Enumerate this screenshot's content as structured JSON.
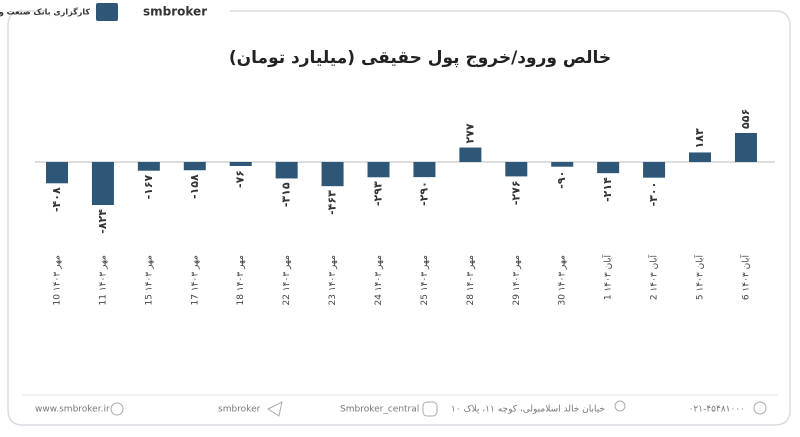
{
  "header": {
    "brand": "smbroker",
    "logo_text": "کارگزاری بانک صنعت و معدن"
  },
  "chart_data": {
    "type": "bar",
    "title": "خالص ورود/خروج پول حقیقی (میلیارد تومان)",
    "categories": [
      "10 مهر ۱۴۰۳",
      "11 مهر ۱۴۰۳",
      "15 مهر ۱۴۰۳",
      "17 مهر ۱۴۰۳",
      "18 مهر ۱۴۰۳",
      "22 مهر ۱۴۰۳",
      "23 مهر ۱۴۰۳",
      "24 مهر ۱۴۰۳",
      "25 مهر ۱۴۰۳",
      "28 مهر ۱۴۰۳",
      "29 مهر ۱۴۰۳",
      "30 مهر ۱۴۰۳",
      "1 آبان ۱۴۰۳",
      "2 آبان ۱۴۰۳",
      "5 آبان ۱۴۰۳",
      "6 آبان ۱۴۰۳"
    ],
    "values": [
      -408,
      -824,
      -167,
      -158,
      -76,
      -315,
      -463,
      -293,
      -290,
      277,
      -276,
      -90,
      -214,
      -300,
      183,
      556
    ],
    "value_labels": [
      "-۴۰۸",
      "-۸۲۴",
      "-۱۶۷",
      "-۱۵۸",
      "-۷۶",
      "-۳۱۵",
      "-۴۶۳",
      "-۲۹۳",
      "-۲۹۰",
      "۲۷۷",
      "-۲۷۶",
      "-۹۰",
      "-۲۱۴",
      "-۳۰۰",
      "۱۸۳",
      "۵۵۶"
    ],
    "color": "#2d5677"
  },
  "footer": {
    "website": "www.smbroker.ir",
    "telegram": "smbroker",
    "instagram": "Smbroker_central",
    "address": "خیابان خالد اسلامبولی، کوچه ۱۱، پلاک ۱۰",
    "phone": "۰۲۱-۴۵۴۸۱۰۰۰"
  }
}
